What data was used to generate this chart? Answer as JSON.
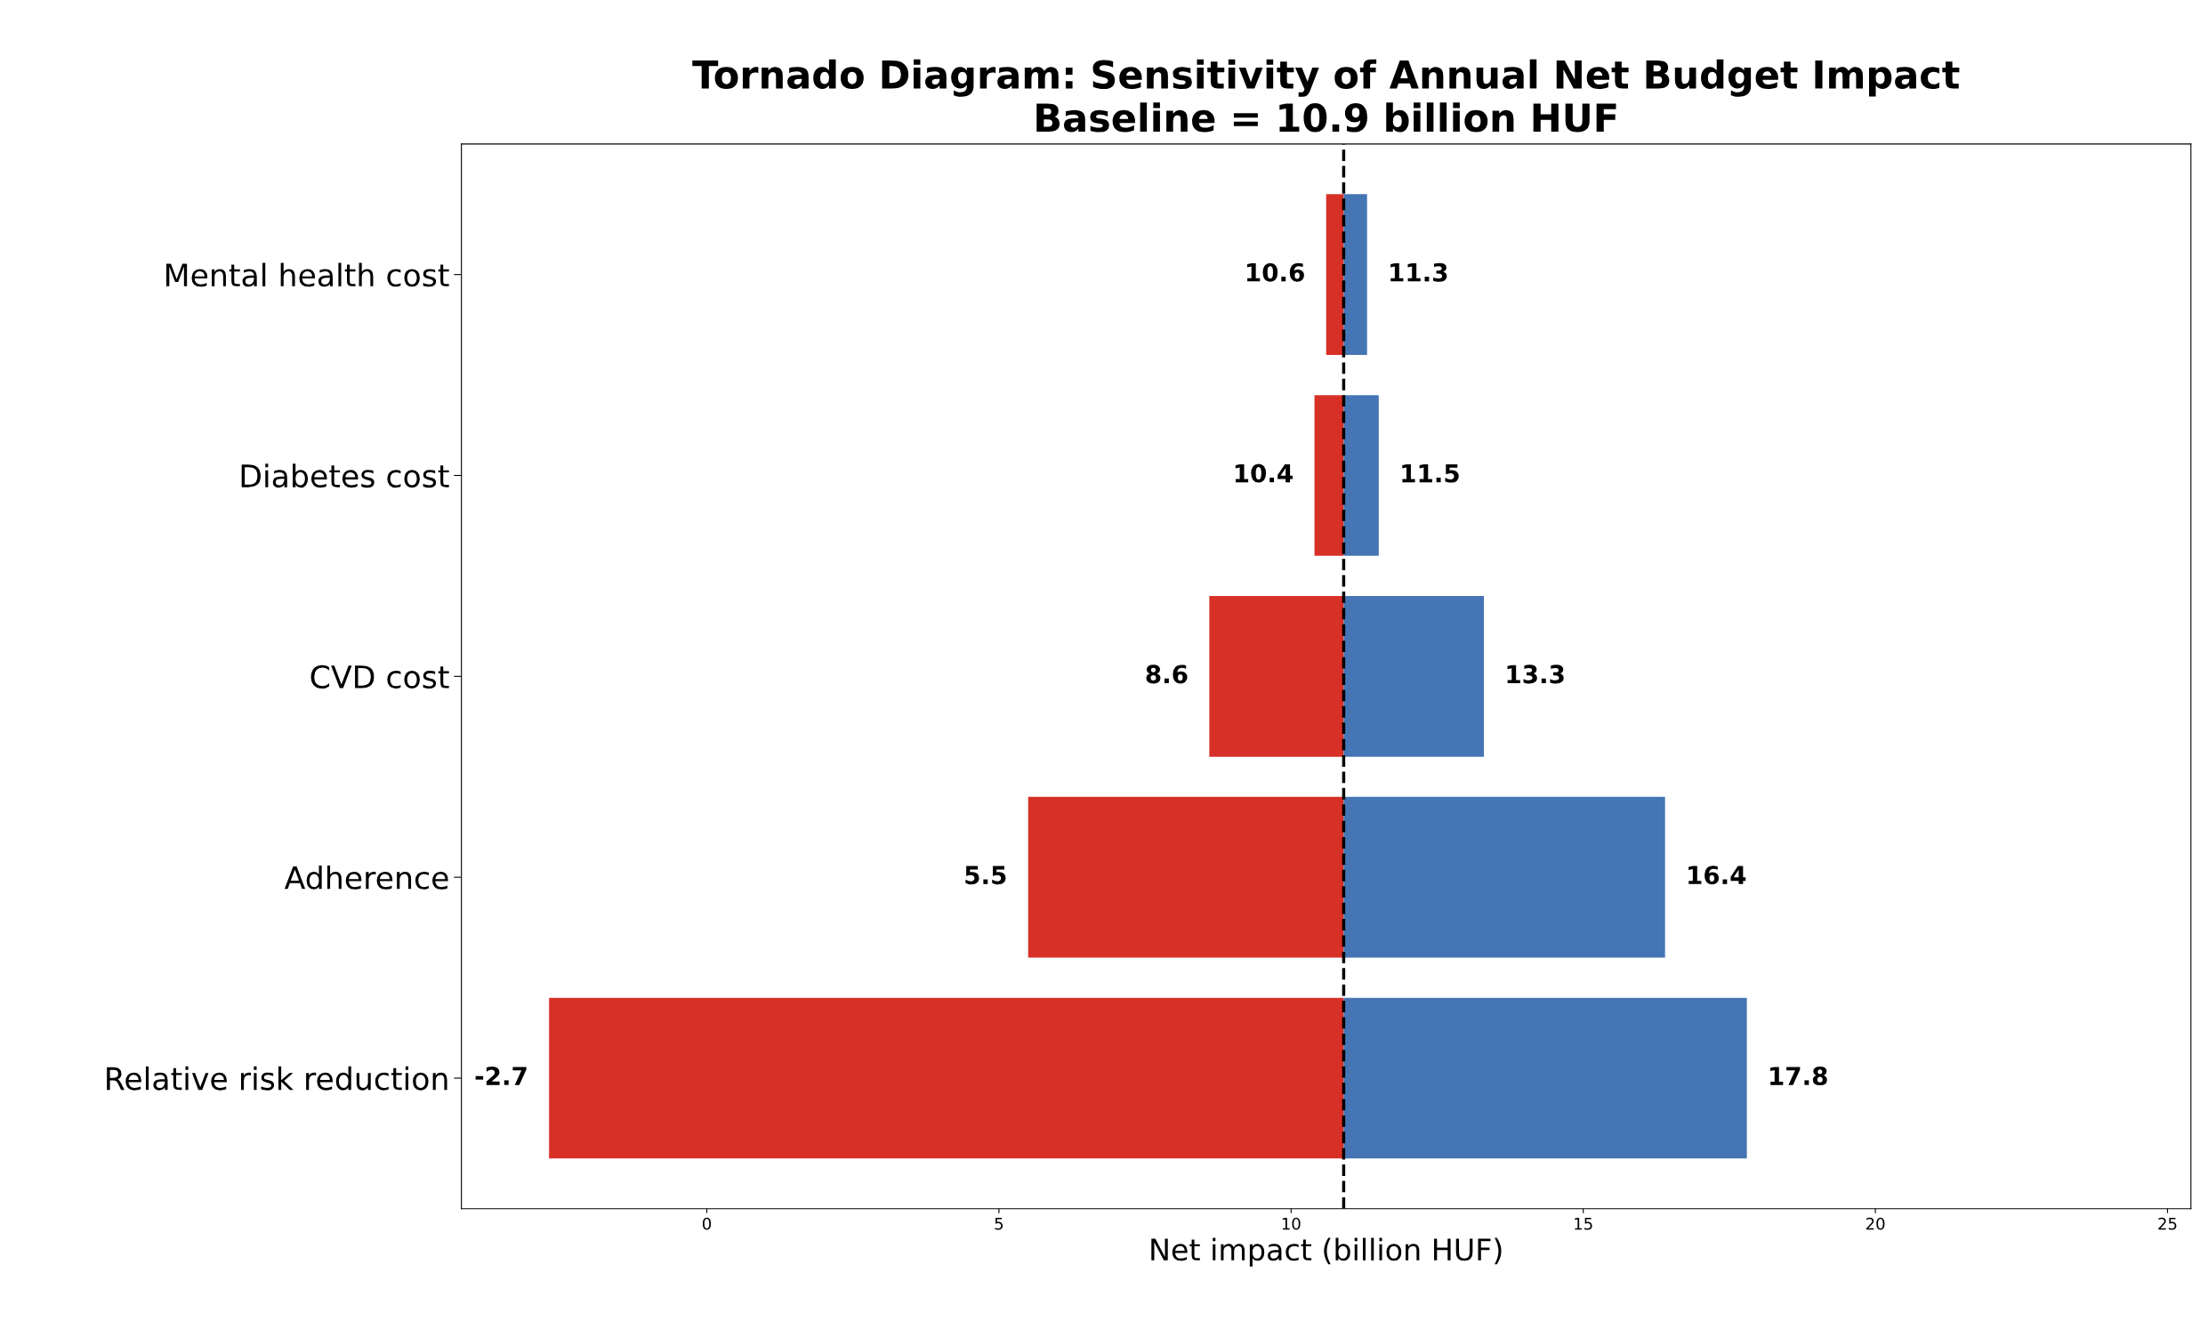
{
  "chart_data": {
    "type": "bar",
    "orientation": "horizontal",
    "title": "Tornado Diagram: Sensitivity of Annual Net Budget Impact",
    "subtitle": "Baseline = 10.9 billion HUF",
    "xlabel": "Net impact (billion HUF)",
    "categories": [
      "Mental health cost",
      "Diabetes cost",
      "CVD cost",
      "Adherence",
      "Relative risk reduction"
    ],
    "series": [
      {
        "color": "#d73027",
        "base": [
          10.6,
          10.4,
          8.6,
          5.5,
          -2.7
        ],
        "values": [
          0.3,
          0.5,
          2.3,
          5.4,
          13.6
        ]
      },
      {
        "color": "#4575b4",
        "base": [
          10.9,
          10.9,
          10.9,
          10.9,
          10.9
        ],
        "values": [
          0.4,
          0.6,
          2.4,
          5.5,
          6.9
        ]
      }
    ],
    "annotations": [
      {
        "text": "10.6",
        "x": 10.6,
        "y": "Mental health cost"
      },
      {
        "text": "10.4",
        "x": 10.4,
        "y": "Diabetes cost"
      },
      {
        "text": "8.6",
        "x": 8.6,
        "y": "CVD cost"
      },
      {
        "text": "5.5",
        "x": 5.5,
        "y": "Adherence"
      },
      {
        "text": "-2.7",
        "x": -2.7,
        "y": "Relative risk reduction"
      },
      {
        "text": "11.3",
        "x": 11.3,
        "y": "Mental health cost"
      },
      {
        "text": "11.5",
        "x": 11.5,
        "y": "Diabetes cost"
      },
      {
        "text": "13.3",
        "x": 13.3,
        "y": "CVD cost"
      },
      {
        "text": "16.4",
        "x": 16.4,
        "y": "Adherence"
      },
      {
        "text": "17.8",
        "x": 17.8,
        "y": "Relative risk reduction"
      }
    ],
    "xlim": [
      -4.2,
      25.4
    ],
    "xticks": [
      0,
      5,
      10,
      15,
      20,
      25
    ],
    "ref_lines": [
      {
        "axis": "x",
        "value": 10.9,
        "color": "#000000",
        "line_style": "dashed"
      }
    ],
    "grid": false,
    "legend": false
  }
}
